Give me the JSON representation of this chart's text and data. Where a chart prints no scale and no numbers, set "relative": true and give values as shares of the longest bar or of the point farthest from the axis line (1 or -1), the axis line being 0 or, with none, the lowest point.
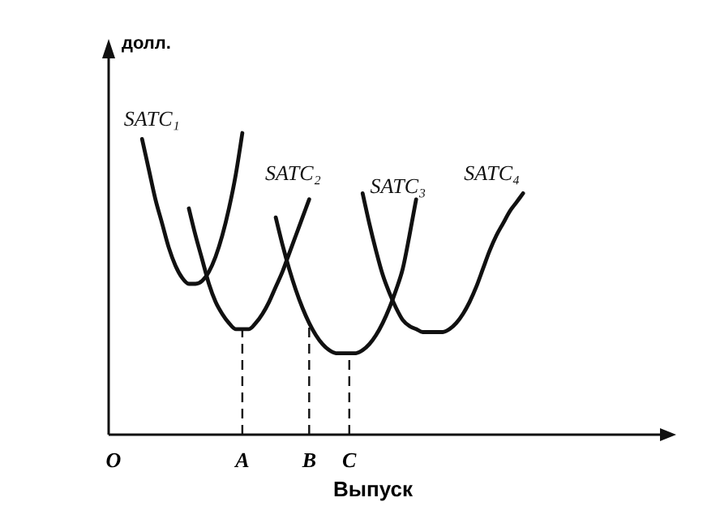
{
  "chart_data": {
    "type": "line",
    "relative": true,
    "xlabel": "Выпуск",
    "ylabel": "долл.",
    "tick_labels": "x",
    "marker": "none",
    "line_style": "solid",
    "categories": [
      "O",
      null,
      null,
      null,
      null,
      null,
      null,
      null,
      null,
      null,
      null,
      null,
      null,
      null,
      null,
      null,
      null,
      null,
      null,
      null,
      "A",
      null,
      null,
      null,
      null,
      null,
      null,
      null,
      null,
      null,
      "B",
      null,
      null,
      null,
      null,
      null,
      "C",
      null,
      null,
      null,
      null,
      null,
      null,
      null,
      null,
      null,
      null,
      null,
      null,
      null,
      null,
      null,
      null,
      null,
      null,
      null,
      null,
      null,
      null,
      null,
      null,
      null,
      null,
      null,
      null,
      null,
      null,
      null,
      null,
      null,
      null,
      null,
      null,
      null,
      null,
      null,
      null,
      null,
      null,
      null,
      null,
      null,
      null
    ],
    "series": [
      {
        "name": "SATC₁",
        "color": "#111111",
        "values": [
          null,
          null,
          null,
          null,
          null,
          0.98,
          0.88,
          0.78,
          0.7,
          0.62,
          0.56,
          0.52,
          0.5,
          0.5,
          0.51,
          0.54,
          0.59,
          0.66,
          0.75,
          0.86,
          1.0,
          null,
          null,
          null,
          null,
          null,
          null,
          null,
          null,
          null,
          null,
          null,
          null,
          null,
          null,
          null,
          null,
          null,
          null,
          null,
          null,
          null,
          null,
          null,
          null,
          null,
          null,
          null,
          null,
          null,
          null,
          null,
          null,
          null,
          null,
          null,
          null,
          null,
          null,
          null,
          null,
          null,
          null,
          null,
          null,
          null,
          null,
          null,
          null,
          null,
          null,
          null,
          null,
          null,
          null,
          null,
          null,
          null,
          null,
          null,
          null,
          null,
          null
        ]
      },
      {
        "name": "SATC₂",
        "color": "#111111",
        "values": [
          null,
          null,
          null,
          null,
          null,
          null,
          null,
          null,
          null,
          null,
          null,
          null,
          0.75,
          0.66,
          0.58,
          0.5,
          0.44,
          0.4,
          0.37,
          0.35,
          0.35,
          0.35,
          0.37,
          0.4,
          0.44,
          0.49,
          0.54,
          0.6,
          0.66,
          0.72,
          0.78,
          null,
          null,
          null,
          null,
          null,
          null,
          null,
          null,
          null,
          null,
          null,
          null,
          null,
          null,
          null,
          null,
          null,
          null,
          null,
          null,
          null,
          null,
          null,
          null,
          null,
          null,
          null,
          null,
          null,
          null,
          null,
          null,
          null,
          null,
          null,
          null,
          null,
          null,
          null,
          null,
          null,
          null,
          null,
          null,
          null,
          null,
          null,
          null,
          null,
          null,
          null,
          null
        ]
      },
      {
        "name": "SATC₃",
        "color": "#111111",
        "values": [
          null,
          null,
          null,
          null,
          null,
          null,
          null,
          null,
          null,
          null,
          null,
          null,
          null,
          null,
          null,
          null,
          null,
          null,
          null,
          null,
          null,
          null,
          null,
          null,
          null,
          0.72,
          0.63,
          0.55,
          0.48,
          0.42,
          0.37,
          0.33,
          0.3,
          0.28,
          0.27,
          0.27,
          0.27,
          0.27,
          0.28,
          0.3,
          0.33,
          0.37,
          0.42,
          0.48,
          0.55,
          0.66,
          0.78,
          null,
          null,
          null,
          null,
          null,
          null,
          null,
          null,
          null,
          null,
          null,
          null,
          null,
          null,
          null,
          null,
          null,
          null,
          null,
          null,
          null,
          null,
          null,
          null,
          null,
          null,
          null,
          null,
          null,
          null,
          null,
          null,
          null,
          null,
          null,
          null
        ]
      },
      {
        "name": "SATC₄",
        "color": "#111111",
        "values": [
          null,
          null,
          null,
          null,
          null,
          null,
          null,
          null,
          null,
          null,
          null,
          null,
          null,
          null,
          null,
          null,
          null,
          null,
          null,
          null,
          null,
          null,
          null,
          null,
          null,
          null,
          null,
          null,
          null,
          null,
          null,
          null,
          null,
          null,
          null,
          null,
          null,
          null,
          0.8,
          0.7,
          0.61,
          0.53,
          0.47,
          0.42,
          0.38,
          0.36,
          0.35,
          0.34,
          0.34,
          0.34,
          0.34,
          0.35,
          0.37,
          0.4,
          0.44,
          0.49,
          0.55,
          0.61,
          0.66,
          0.7,
          0.74,
          0.77,
          0.8,
          null,
          null,
          null,
          null,
          null,
          null,
          null,
          null,
          null,
          null,
          null,
          null,
          null,
          null,
          null,
          null,
          null,
          null,
          null,
          null
        ]
      }
    ],
    "ref_lines": [
      {
        "axis": "x",
        "value": "A",
        "line_style": "dashed"
      },
      {
        "axis": "x",
        "value": "B",
        "line_style": "dashed"
      },
      {
        "axis": "x",
        "value": "C",
        "line_style": "dashed"
      }
    ]
  }
}
